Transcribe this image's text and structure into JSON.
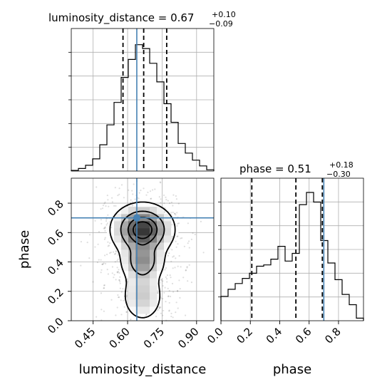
{
  "chart_data": {
    "type": "corner",
    "parameters": [
      "luminosity_distance",
      "phase"
    ],
    "truths": {
      "luminosity_distance": 0.64,
      "phase": 0.7
    },
    "titles": {
      "luminosity_distance": {
        "name": "luminosity_distance",
        "value": "0.67",
        "plus": "+0.10",
        "minus": "−0.09"
      },
      "phase": {
        "name": "phase",
        "value": "0.51",
        "plus": "+0.18",
        "minus": "−0.30"
      }
    },
    "axis_labels": {
      "x_left": "luminosity_distance",
      "x_right": "phase",
      "y_lower": "phase"
    },
    "axes": {
      "luminosity_distance": {
        "range": [
          0.355,
          0.975
        ],
        "ticks": [
          0.45,
          0.6,
          0.75,
          0.9
        ],
        "tick_labels": [
          "0.45",
          "0.60",
          "0.75",
          "0.90"
        ]
      },
      "phase": {
        "range": [
          0.0,
          0.97
        ],
        "ticks": [
          0.0,
          0.2,
          0.4,
          0.6,
          0.8
        ],
        "tick_labels": [
          "0.0",
          "0.2",
          "0.4",
          "0.6",
          "0.8"
        ]
      }
    },
    "marginal_luminosity_distance": {
      "bin_edges": [
        0.355,
        0.386,
        0.417,
        0.448,
        0.479,
        0.51,
        0.541,
        0.572,
        0.603,
        0.634,
        0.665,
        0.696,
        0.727,
        0.758,
        0.789,
        0.82,
        0.851,
        0.882,
        0.913,
        0.944,
        0.975
      ],
      "counts": [
        0.005,
        0.02,
        0.045,
        0.095,
        0.205,
        0.36,
        0.535,
        0.73,
        0.87,
        0.985,
        0.955,
        0.84,
        0.695,
        0.525,
        0.38,
        0.215,
        0.14,
        0.085,
        0.04,
        0.01
      ],
      "quantiles": [
        0.58,
        0.67,
        0.77
      ]
    },
    "marginal_phase": {
      "bin_edges": [
        0.0,
        0.0485,
        0.097,
        0.1455,
        0.194,
        0.2425,
        0.291,
        0.3395,
        0.388,
        0.4365,
        0.485,
        0.5335,
        0.582,
        0.6305,
        0.679,
        0.7275,
        0.776,
        0.8245,
        0.873,
        0.9215,
        0.97
      ],
      "counts": [
        0.19,
        0.245,
        0.29,
        0.33,
        0.37,
        0.425,
        0.435,
        0.48,
        0.58,
        0.465,
        0.525,
        0.905,
        1.0,
        0.925,
        0.625,
        0.45,
        0.32,
        0.205,
        0.125,
        0.02
      ],
      "quantiles": [
        0.21,
        0.51,
        0.69
      ]
    },
    "contour_levels": [
      0.118,
      0.393,
      0.675,
      0.865
    ]
  }
}
